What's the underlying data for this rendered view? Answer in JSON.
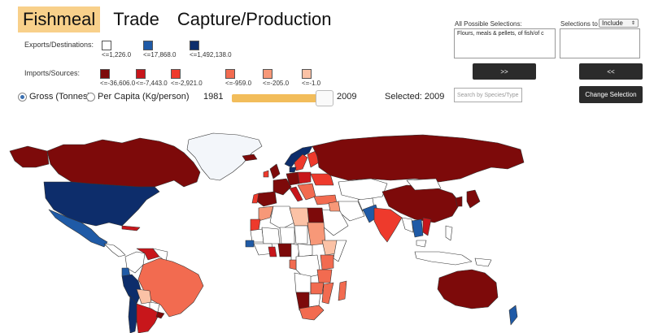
{
  "tabs": [
    {
      "label": "Fishmeal",
      "active": true
    },
    {
      "label": "Trade",
      "active": false
    },
    {
      "label": "Capture/Production",
      "active": false
    }
  ],
  "legend": {
    "exports_label": "Exports/Destinations:",
    "exports": [
      {
        "value": "<=1,226.0",
        "color": "#ffffff"
      },
      {
        "value": "<=17,868.0",
        "color": "#1f5aa6"
      },
      {
        "value": "<=1,492,138.0",
        "color": "#0d2d6b"
      }
    ],
    "imports_label": "Imports/Sources:",
    "imports": [
      {
        "value": "<=-36,606.0",
        "color": "#7d0a0a"
      },
      {
        "value": "<=-7,443.0",
        "color": "#c8161b"
      },
      {
        "value": "<=-2,921.0",
        "color": "#ee3a2c"
      },
      {
        "value": "<=-959.0",
        "color": "#f26b50"
      },
      {
        "value": "<=-205.0",
        "color": "#f79878"
      },
      {
        "value": "<=-1.0",
        "color": "#fbc2a6"
      }
    ]
  },
  "controls": {
    "gross_label": "Gross (Tonnes)",
    "percapita_label": "Per Capita (Kg/person)",
    "year_start": "1981",
    "year_end": "2009",
    "selected_text": "Selected: 2009",
    "slider_fraction": 0.88
  },
  "panel": {
    "all_label": "All Possible Selections:",
    "all_item": "Flours, meals & pellets, of fish/of c",
    "include_label": "Selections to",
    "include_select": "Include",
    "add_button": ">>",
    "remove_button": "<<",
    "search_placeholder": "Search by Species/Type",
    "change_button": "Change Selection"
  },
  "map_colors": {
    "ocean": "#ffffff",
    "border": "#333333"
  }
}
